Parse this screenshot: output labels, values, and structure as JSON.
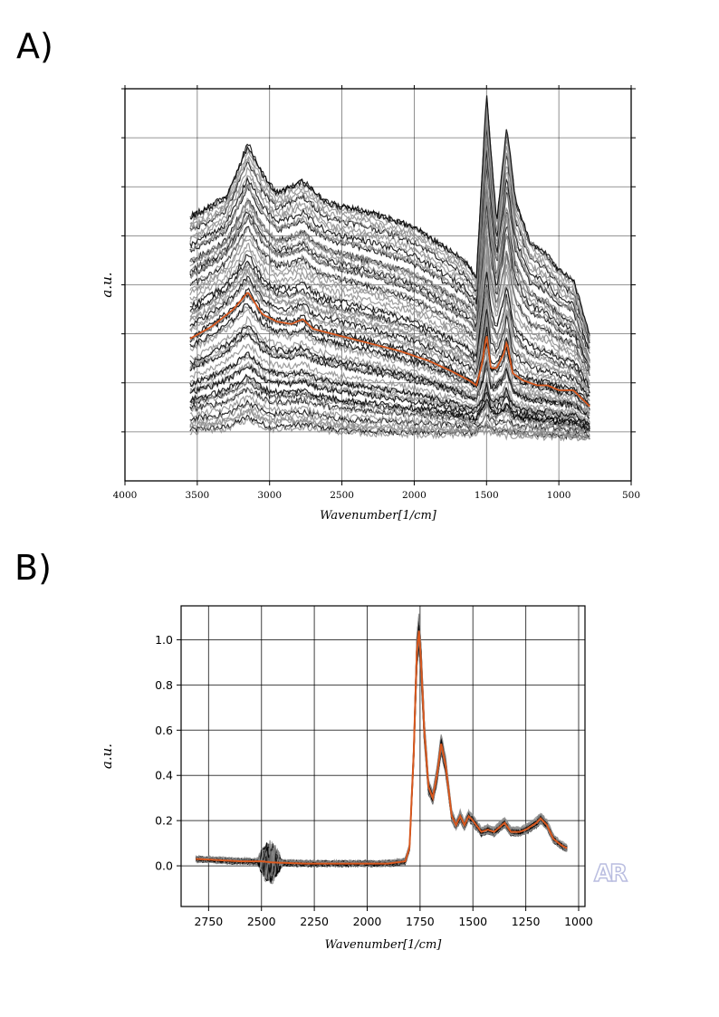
{
  "panels": {
    "a_label": "A)",
    "b_label": "B)"
  },
  "watermark": "AR",
  "colors": {
    "mean": "#d9581e",
    "dark": "#000000",
    "gray": "#8c8c8c",
    "grid": "#000000"
  },
  "chart_data": [
    {
      "type": "line",
      "panel": "A)",
      "xlabel": "Wavenumber[1/cm]",
      "ylabel": "a.u.",
      "xlim": [
        4000,
        500
      ],
      "xreversed": true,
      "x_ticks": [
        4000,
        3500,
        3000,
        2500,
        2000,
        1500,
        1000,
        500
      ],
      "y_ticks_labeled": false,
      "ylim": [
        0,
        8
      ],
      "y_gridlines": [
        1,
        2,
        3,
        4,
        5,
        6,
        7,
        8
      ],
      "grid": true,
      "n_spectra_approx": 200,
      "x_range": [
        3550,
        780
      ],
      "mean_series": {
        "name": "",
        "color": "#d9581e",
        "points": [
          [
            3550,
            2.9
          ],
          [
            3400,
            3.15
          ],
          [
            3250,
            3.5
          ],
          [
            3150,
            3.85
          ],
          [
            3050,
            3.4
          ],
          [
            2950,
            3.25
          ],
          [
            2850,
            3.2
          ],
          [
            2770,
            3.3
          ],
          [
            2700,
            3.1
          ],
          [
            2500,
            2.95
          ],
          [
            2300,
            2.8
          ],
          [
            2100,
            2.65
          ],
          [
            1900,
            2.45
          ],
          [
            1750,
            2.25
          ],
          [
            1620,
            2.05
          ],
          [
            1570,
            1.95
          ],
          [
            1530,
            2.4
          ],
          [
            1500,
            3.0
          ],
          [
            1470,
            2.3
          ],
          [
            1430,
            2.3
          ],
          [
            1380,
            2.6
          ],
          [
            1360,
            2.85
          ],
          [
            1320,
            2.2
          ],
          [
            1250,
            2.05
          ],
          [
            1150,
            1.95
          ],
          [
            1080,
            1.95
          ],
          [
            1000,
            1.85
          ],
          [
            900,
            1.85
          ],
          [
            780,
            1.5
          ]
        ]
      },
      "upper_envelope": [
        [
          3550,
          5.5
        ],
        [
          3300,
          5.9
        ],
        [
          3150,
          7.0
        ],
        [
          3050,
          6.4
        ],
        [
          2950,
          6.0
        ],
        [
          2770,
          6.25
        ],
        [
          2600,
          5.8
        ],
        [
          2300,
          5.6
        ],
        [
          2000,
          5.3
        ],
        [
          1800,
          4.9
        ],
        [
          1650,
          4.6
        ],
        [
          1570,
          4.25
        ],
        [
          1500,
          8.1
        ],
        [
          1430,
          5.4
        ],
        [
          1360,
          7.4
        ],
        [
          1300,
          5.9
        ],
        [
          1200,
          5.0
        ],
        [
          1100,
          4.8
        ],
        [
          1000,
          4.4
        ],
        [
          900,
          4.2
        ],
        [
          780,
          3.0
        ]
      ],
      "lower_envelope": [
        [
          3550,
          1.0
        ],
        [
          3300,
          1.05
        ],
        [
          3150,
          1.25
        ],
        [
          3000,
          1.05
        ],
        [
          2770,
          1.1
        ],
        [
          2500,
          0.98
        ],
        [
          2000,
          0.95
        ],
        [
          1600,
          0.95
        ],
        [
          1500,
          1.05
        ],
        [
          1400,
          0.95
        ],
        [
          1000,
          0.9
        ],
        [
          780,
          0.85
        ]
      ]
    },
    {
      "type": "line",
      "panel": "B)",
      "xlabel": "Wavenumber[1/cm]",
      "ylabel": "a.u.",
      "xlim": [
        2880,
        970
      ],
      "xreversed": true,
      "ylim": [
        -0.18,
        1.15
      ],
      "x_ticks": [
        2750,
        2500,
        2250,
        2000,
        1750,
        1500,
        1250,
        1000
      ],
      "y_ticks": [
        0.0,
        0.2,
        0.4,
        0.6,
        0.8,
        1.0
      ],
      "y_tick_labels": [
        "0.0",
        "0.2",
        "0.4",
        "0.6",
        "0.8",
        "1.0"
      ],
      "grid": true,
      "n_spectra_approx": 200,
      "mean_series": {
        "name": "",
        "color": "#d9581e",
        "points": [
          [
            2800,
            0.03
          ],
          [
            2600,
            0.02
          ],
          [
            2500,
            0.02
          ],
          [
            2450,
            0.015
          ],
          [
            2300,
            0.01
          ],
          [
            2100,
            0.01
          ],
          [
            1900,
            0.01
          ],
          [
            1820,
            0.02
          ],
          [
            1800,
            0.08
          ],
          [
            1780,
            0.5
          ],
          [
            1765,
            0.95
          ],
          [
            1755,
            1.04
          ],
          [
            1745,
            0.9
          ],
          [
            1730,
            0.6
          ],
          [
            1710,
            0.35
          ],
          [
            1690,
            0.3
          ],
          [
            1670,
            0.4
          ],
          [
            1650,
            0.54
          ],
          [
            1630,
            0.45
          ],
          [
            1600,
            0.22
          ],
          [
            1580,
            0.18
          ],
          [
            1560,
            0.22
          ],
          [
            1540,
            0.18
          ],
          [
            1520,
            0.22
          ],
          [
            1500,
            0.2
          ],
          [
            1460,
            0.15
          ],
          [
            1430,
            0.16
          ],
          [
            1400,
            0.15
          ],
          [
            1350,
            0.19
          ],
          [
            1320,
            0.15
          ],
          [
            1280,
            0.15
          ],
          [
            1250,
            0.16
          ],
          [
            1200,
            0.19
          ],
          [
            1180,
            0.21
          ],
          [
            1150,
            0.18
          ],
          [
            1120,
            0.12
          ],
          [
            1080,
            0.09
          ],
          [
            1060,
            0.08
          ]
        ]
      },
      "spread_at_peak": [
        0.95,
        1.1
      ],
      "noise_region": {
        "x": [
          2520,
          2400
        ],
        "y": [
          -0.12,
          0.15
        ]
      }
    }
  ]
}
